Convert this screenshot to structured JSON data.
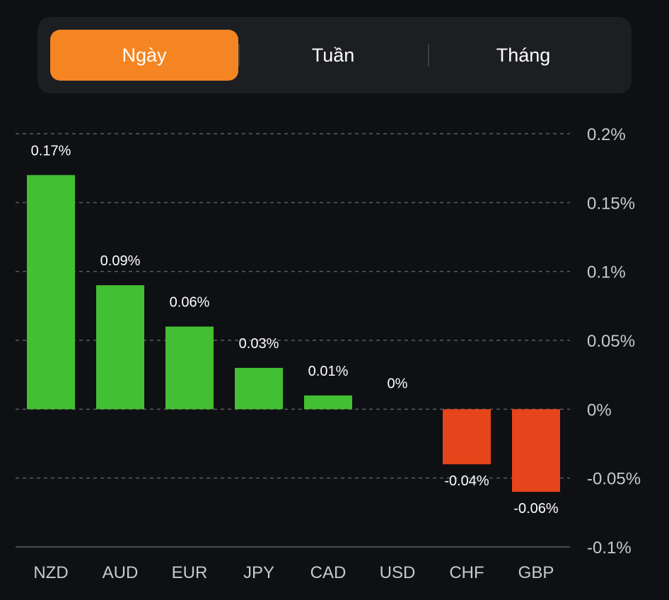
{
  "period_tabs": [
    {
      "label": "Ngày",
      "active": true
    },
    {
      "label": "Tuần",
      "active": false
    },
    {
      "label": "Tháng",
      "active": false
    }
  ],
  "colors": {
    "accent": "#f58522",
    "positive": "#43bf33",
    "negative": "#e6441a",
    "background": "#0e1013",
    "segment_bg": "#1c1e22"
  },
  "chart_data": {
    "type": "bar",
    "title": "",
    "xlabel": "",
    "ylabel": "",
    "categories": [
      "NZD",
      "AUD",
      "EUR",
      "JPY",
      "CAD",
      "USD",
      "CHF",
      "GBP"
    ],
    "values": [
      0.17,
      0.09,
      0.06,
      0.03,
      0.01,
      0,
      -0.04,
      -0.06
    ],
    "value_labels": [
      "0.17%",
      "0.09%",
      "0.06%",
      "0.03%",
      "0.01%",
      "0%",
      "-0.04%",
      "-0.06%"
    ],
    "unit": "%",
    "ylim": [
      -0.1,
      0.2
    ],
    "yticks": [
      0.2,
      0.15,
      0.1,
      0.05,
      0,
      -0.05,
      -0.1
    ],
    "ytick_labels": [
      "0.2%",
      "0.15%",
      "0.1%",
      "0.05%",
      "0%",
      "-0.05%",
      "-0.1%"
    ],
    "y_axis_side": "right",
    "grid": true,
    "grid_style": "dashed",
    "legend": "none"
  }
}
